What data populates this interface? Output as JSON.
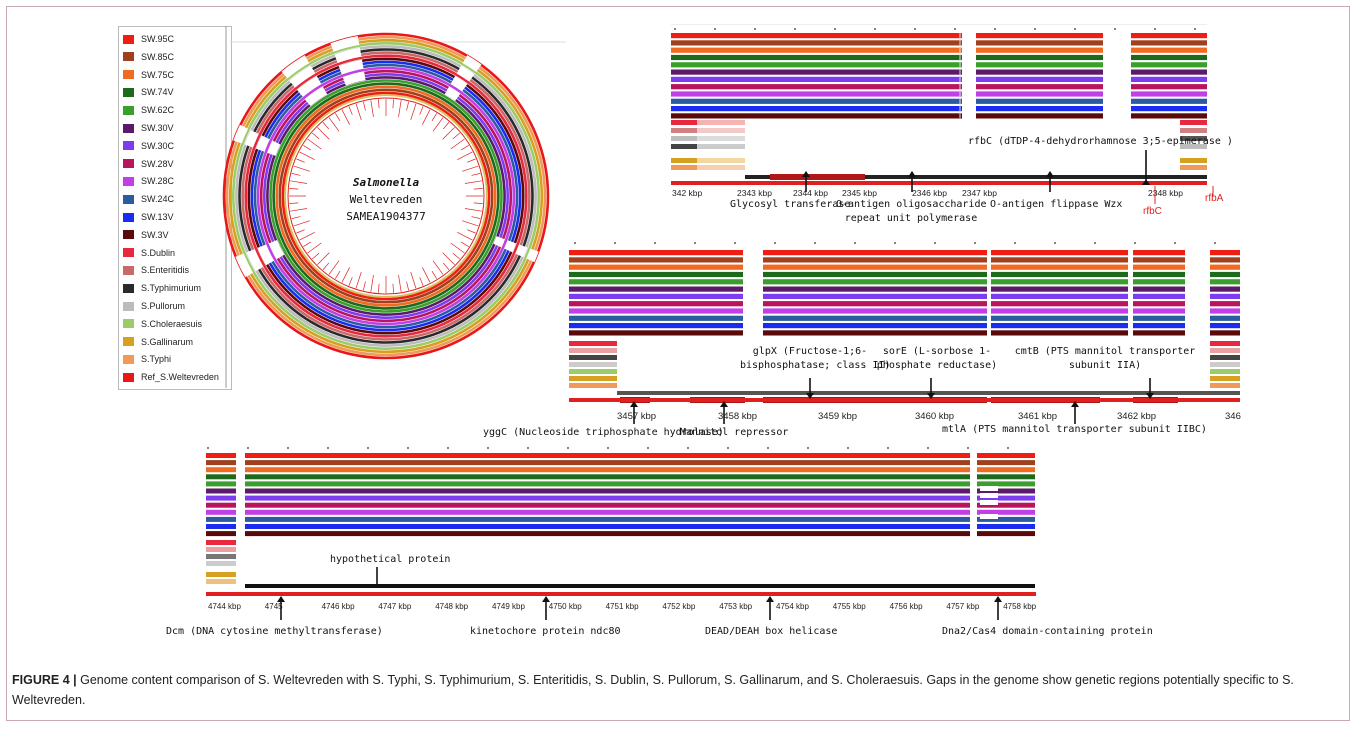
{
  "legend": [
    {
      "name": "SW.95C",
      "color": "#f01d12"
    },
    {
      "name": "SW.85C",
      "color": "#a0401d"
    },
    {
      "name": "SW.75C",
      "color": "#f06a22"
    },
    {
      "name": "SW.74V",
      "color": "#1d6a1d"
    },
    {
      "name": "SW.62C",
      "color": "#3aa02c"
    },
    {
      "name": "SW.30V",
      "color": "#5c1a6a"
    },
    {
      "name": "SW.30C",
      "color": "#7d3cf0"
    },
    {
      "name": "SW.28V",
      "color": "#b8155c"
    },
    {
      "name": "SW.28C",
      "color": "#c23ee6"
    },
    {
      "name": "SW.24C",
      "color": "#2c5ca0"
    },
    {
      "name": "SW.13V",
      "color": "#1a2cf0"
    },
    {
      "name": "SW.3V",
      "color": "#5a0a0a"
    },
    {
      "name": "S.Dublin",
      "color": "#e8283c"
    },
    {
      "name": "S.Enteritidis",
      "color": "#c86a6a"
    },
    {
      "name": "S.Typhimurium",
      "color": "#2a2a2a"
    },
    {
      "name": "S.Pullorum",
      "color": "#bcbcbc"
    },
    {
      "name": "S.Choleraesuis",
      "color": "#9ccc6a"
    },
    {
      "name": "S.Gallinarum",
      "color": "#d6a020"
    },
    {
      "name": "S.Typhi",
      "color": "#f09a5a"
    },
    {
      "name": "Ref_S.Weltevreden",
      "color": "#e81818"
    }
  ],
  "circle": {
    "title1": "Salmonella",
    "title2": "Weltevreden",
    "title3": "SAMEA1904377"
  },
  "panel1": {
    "ticks": [
      "342 kbp",
      "2343 kbp",
      "2344 kbp",
      "2345 kbp",
      "2346 kbp",
      "2347 kbp",
      "2348 kbp"
    ],
    "gene_top": "rfbC  (dTDP-4-dehydrorhamnose 3;5-epimerase )",
    "gene1": "Glycosyl transferase",
    "gene2a": "O-antigen oligosaccharide",
    "gene2b": "repeat unit polymerase",
    "gene3": "O-antigen flippase Wzx",
    "red1": "rfbC",
    "red2": "rfbA"
  },
  "panel2": {
    "ticks": [
      "3457 kbp",
      "3458 kbp",
      "3459 kbp",
      "3460 kbp",
      "3461 kbp",
      "3462 kbp",
      "346"
    ],
    "g1a": "glpX (Fructose-1;6-",
    "g1b": "bisphosphatase; class II)",
    "g2a": "sorE (L-sorbose 1-",
    "g2b": "phosphate reductase)",
    "g3a": "cmtB (PTS mannitol transporter",
    "g3b": "subunit IIA)",
    "b1": "yggC (Nucleoside triphosphate hydrolase)",
    "b2": "Mannitol repressor",
    "b3": "mtlA (PTS mannitol transporter subunit IIBC)"
  },
  "panel3": {
    "ticks": [
      "4744 kbp",
      "4745",
      "4746 kbp",
      "4747 kbp",
      "4748 kbp",
      "4749 kbp",
      "4750 kbp",
      "4751 kbp",
      "4752 kbp",
      "4753 kbp",
      "4754 kbp",
      "4755 kbp",
      "4756 kbp",
      "4757 kbp",
      "4758 kbp"
    ],
    "top": "hypothetical protein",
    "b1": "Dcm (DNA cytosine methyltransferase)",
    "b2": "kinetochore protein ndc80",
    "b3": "DEAD/DEAH box helicase",
    "b4": "Dna2/Cas4 domain-containing protein"
  },
  "caption": {
    "fig": "FIGURE 4 |",
    "text": "Genome content comparison of S. Weltevreden with S. Typhi, S. Typhimurium, S. Enteritidis, S. Dublin, S. Pullorum, S. Gallinarum, and S. Choleraesuis. Gaps in the genome show genetic regions potentially specific to S. Weltevreden."
  }
}
